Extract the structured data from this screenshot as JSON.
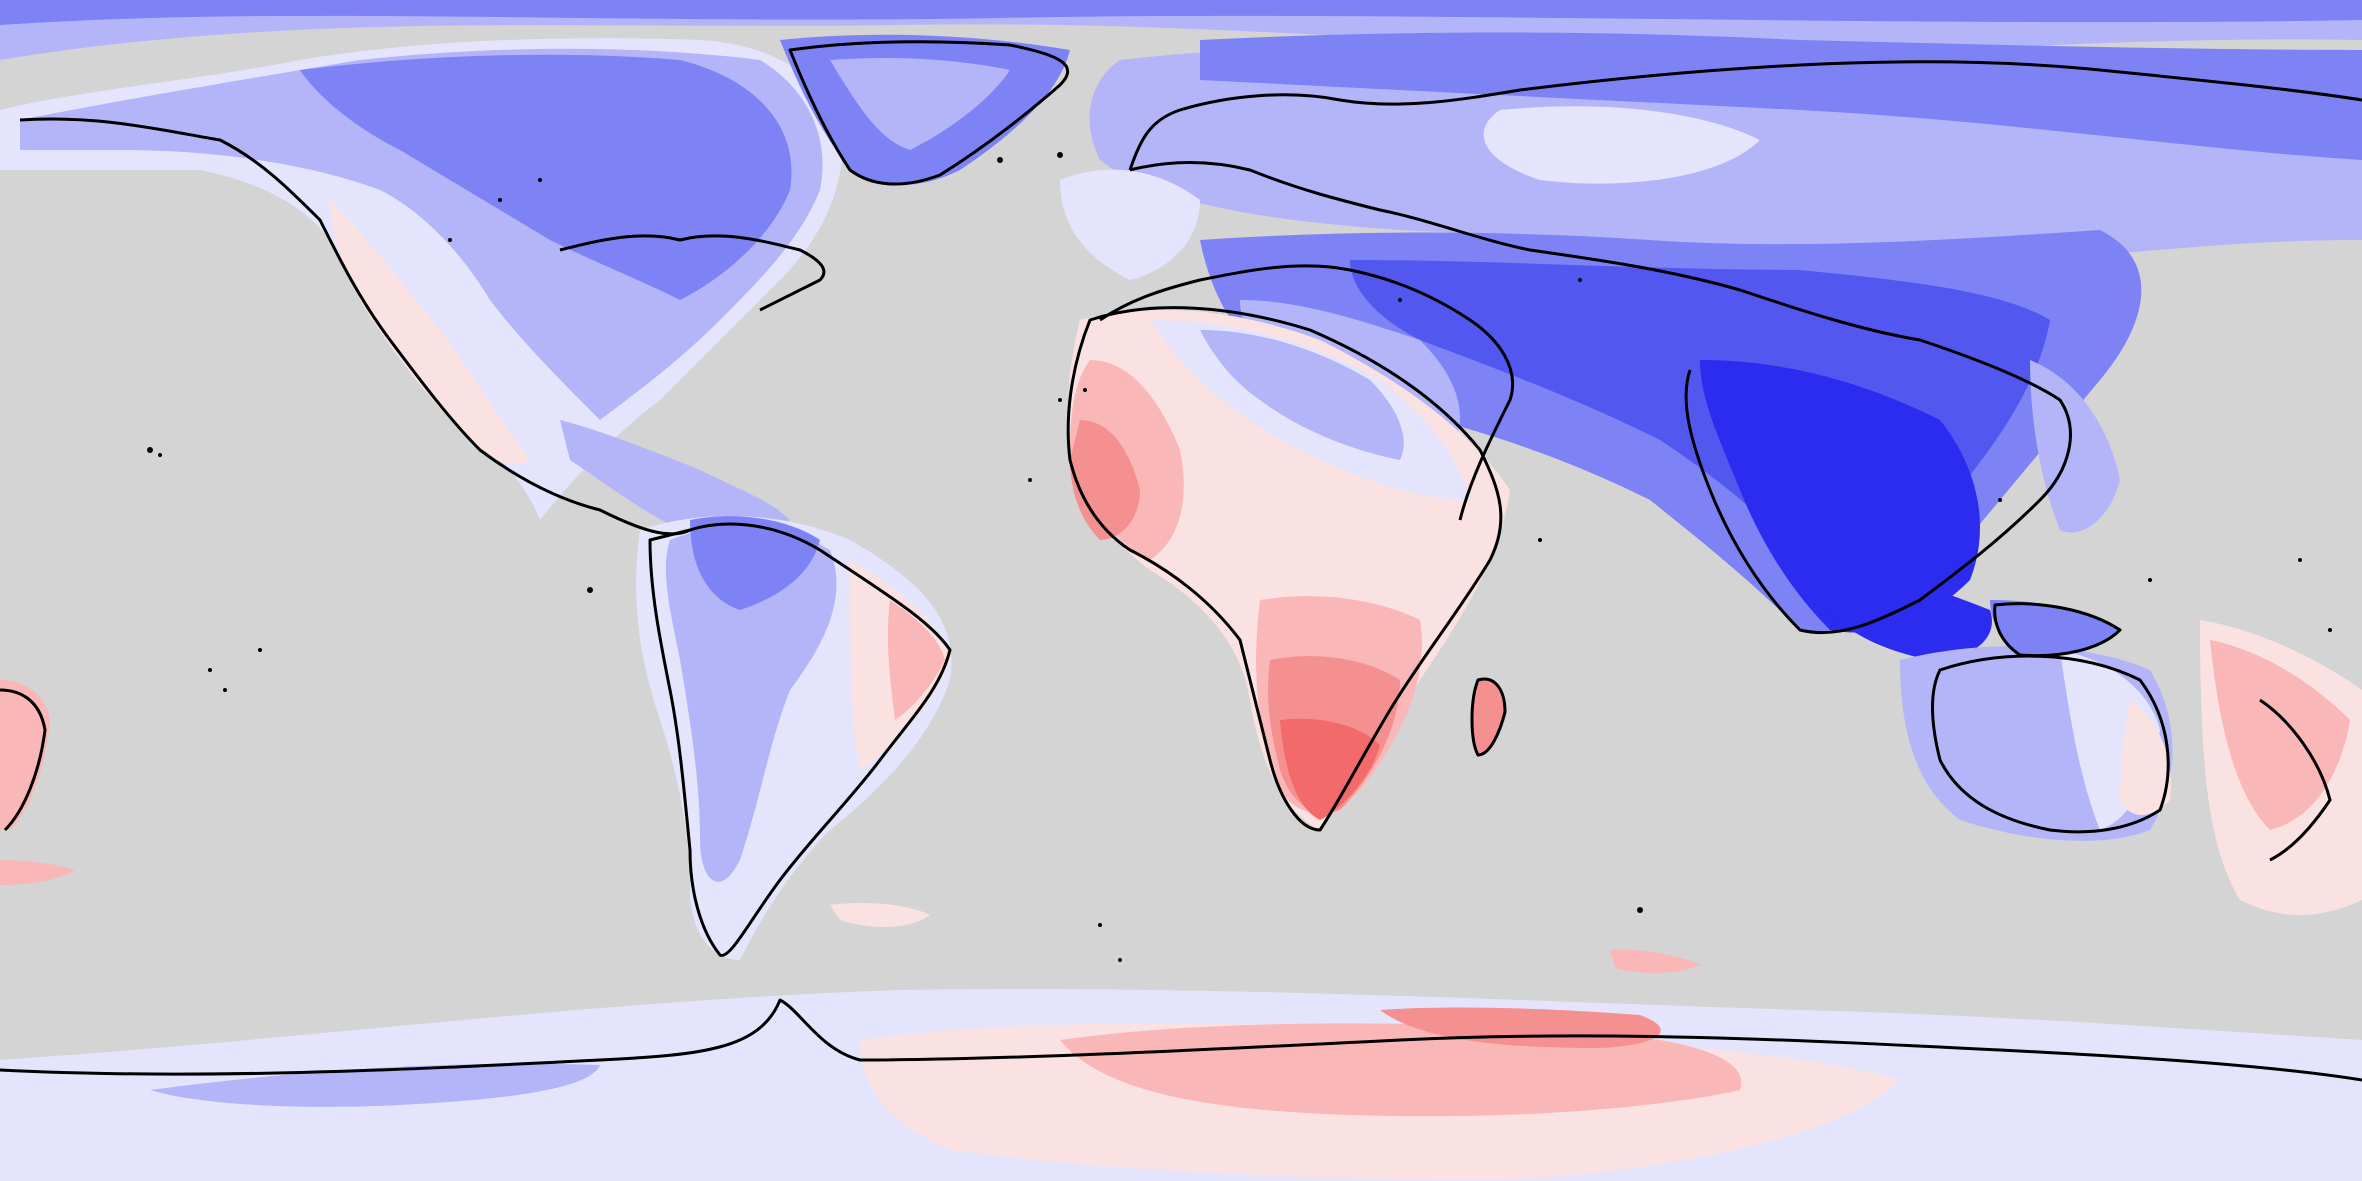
{
  "map": {
    "projection": "equirectangular",
    "extent": {
      "lon": [
        -180,
        180
      ],
      "lat": [
        -90,
        90
      ]
    },
    "ocean_color": "#d4d4d4",
    "coastline_color": "#000000",
    "palette": {
      "blue_4": "#2b2cf0",
      "blue_3": "#5257f0",
      "blue_2": "#7d82f5",
      "blue_1": "#b3b5f8",
      "blue_0": "#e4e5fd",
      "red_0": "#fbe2e2",
      "red_1": "#fab7b7",
      "red_2": "#f59090",
      "red_3": "#f26a6a"
    }
  }
}
